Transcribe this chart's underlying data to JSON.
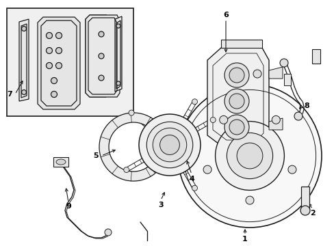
{
  "bg_color": "#ffffff",
  "line_color": "#1a1a1a",
  "fill_light": "#f5f5f5",
  "fill_mid": "#e8e8e8",
  "fig_width": 4.89,
  "fig_height": 3.6,
  "dpi": 100
}
